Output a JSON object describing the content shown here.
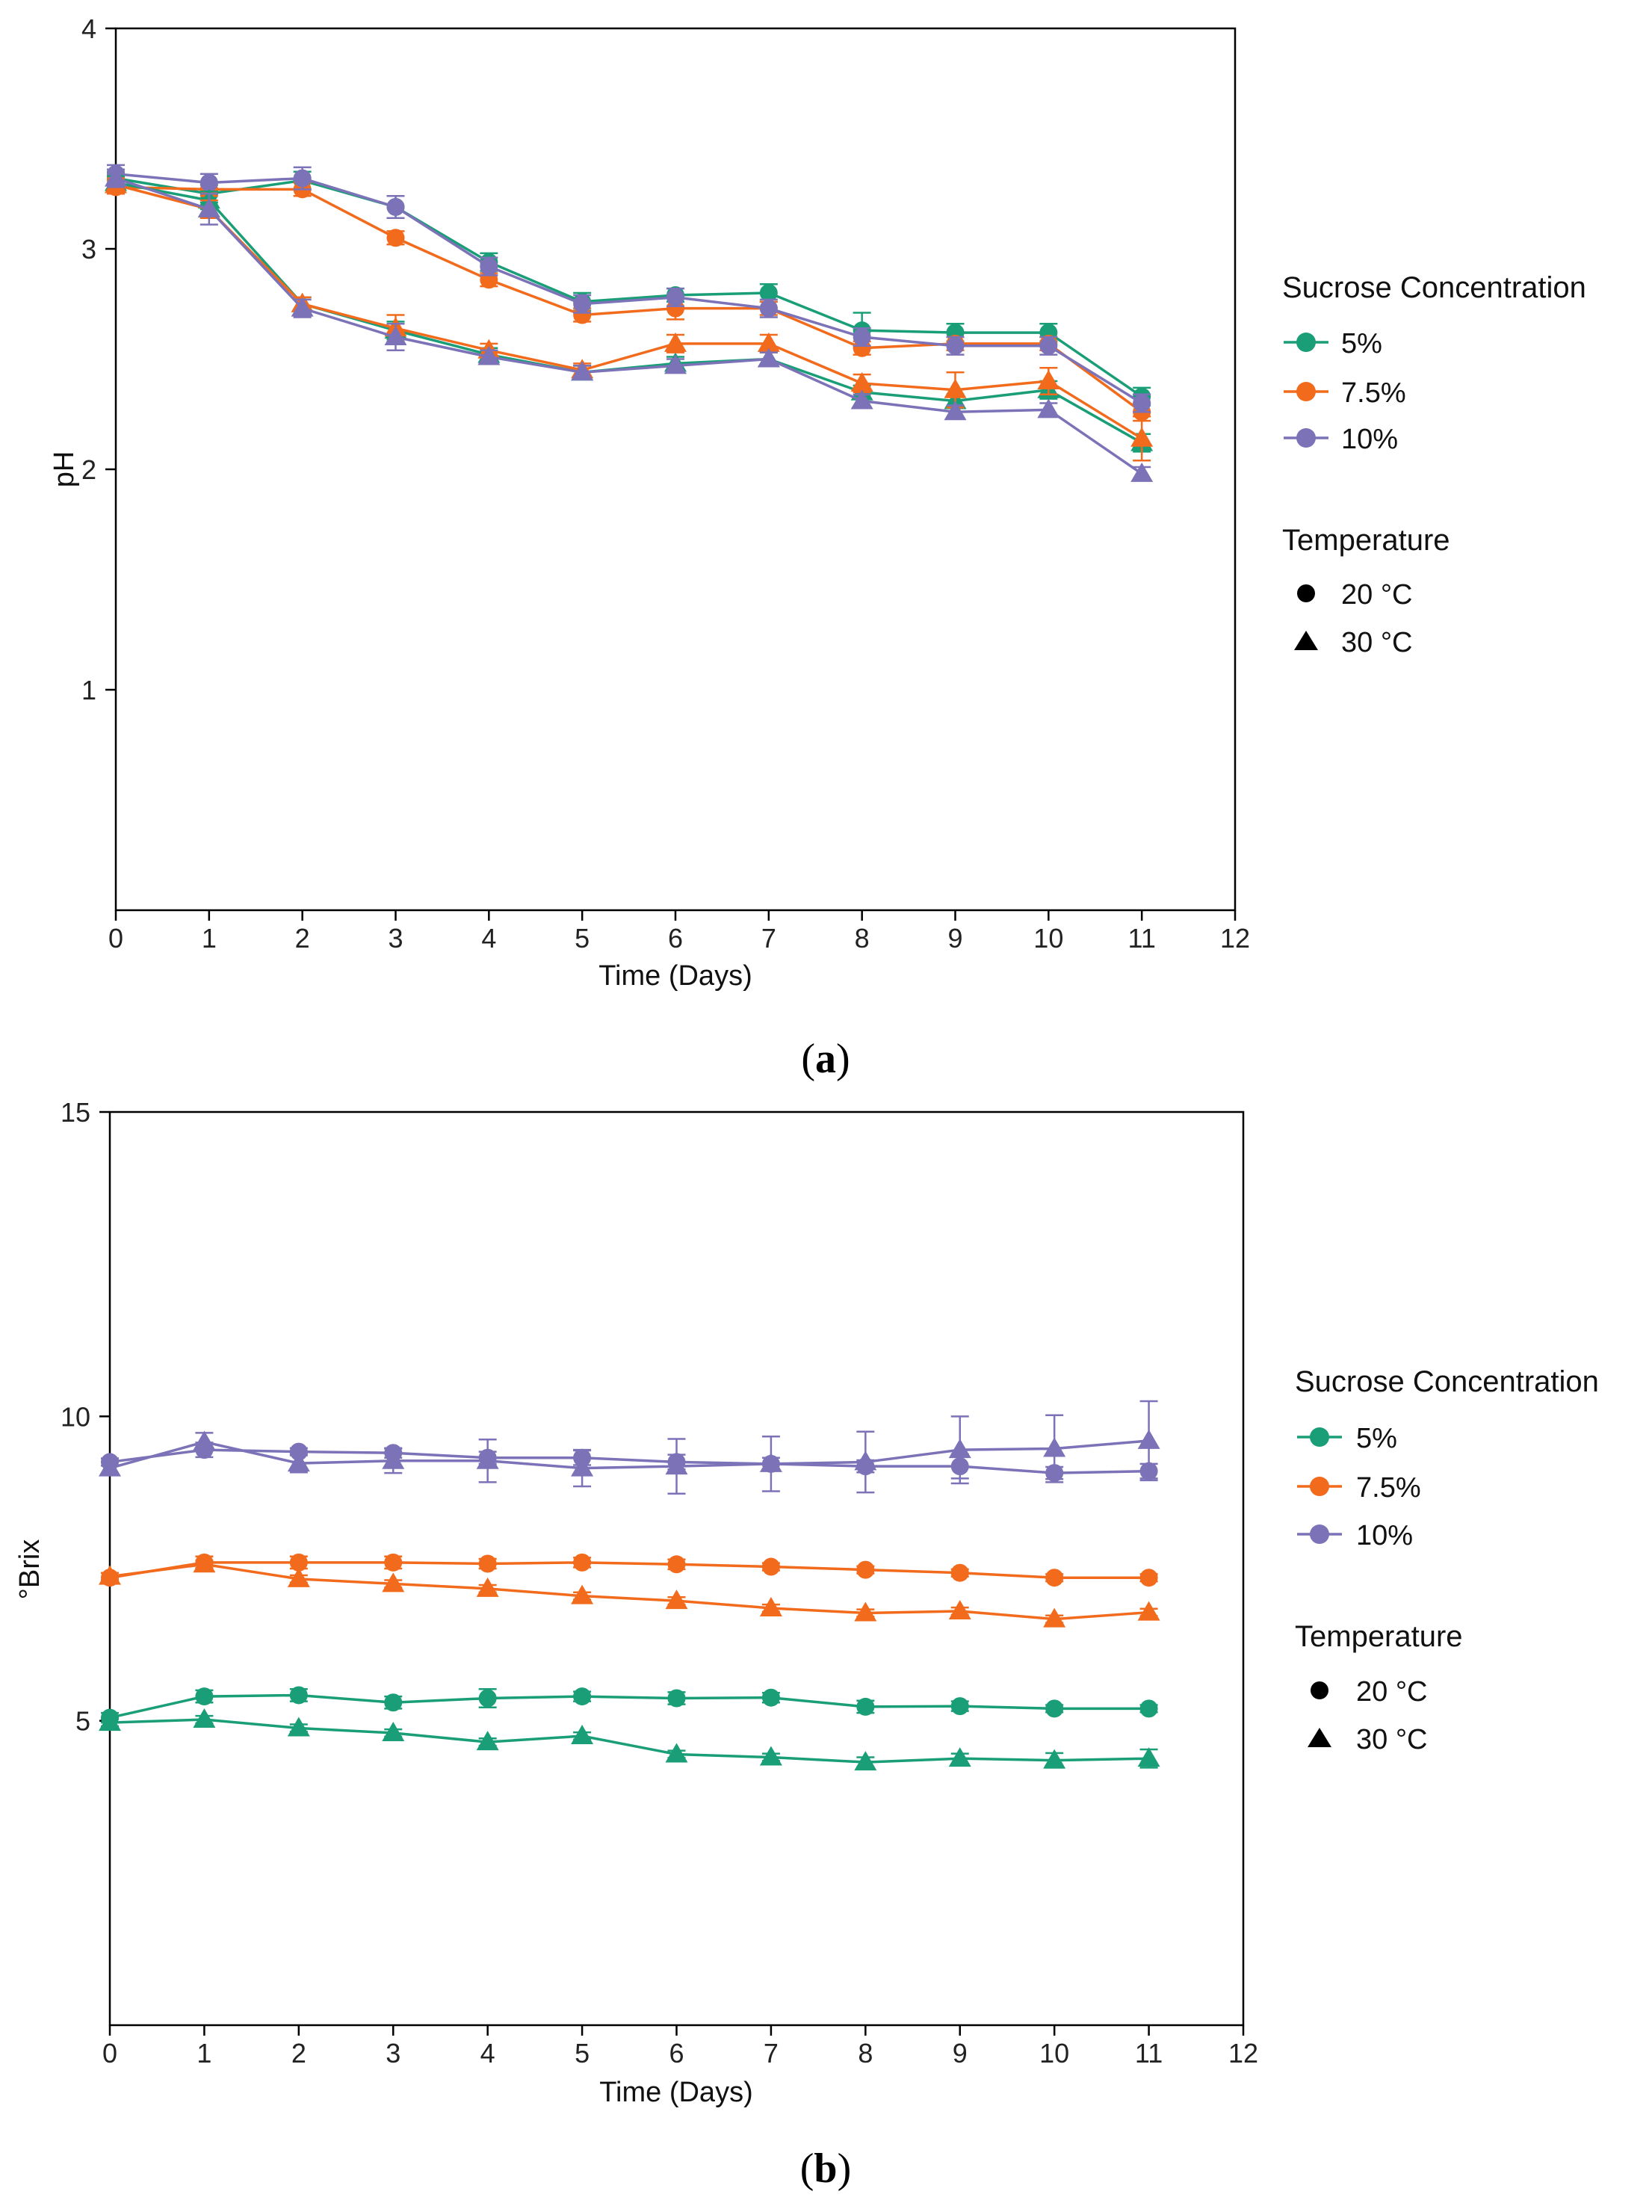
{
  "figure": {
    "colors": {
      "5%": "#1a9e77",
      "7.5%": "#f26b1d",
      "10%": "#7b72b8"
    },
    "legend": {
      "concentration_title": "Sucrose Concentration",
      "concentration_items": [
        "5%",
        "7.5%",
        "10%"
      ],
      "temperature_title": "Temperature",
      "temperature_items": [
        "20 °C",
        "30 °C"
      ]
    }
  },
  "chart_data": [
    {
      "type": "line",
      "id": "a",
      "caption_open": "(",
      "caption_letter": "a",
      "caption_close": ")",
      "xlabel": "Time (Days)",
      "ylabel": "pH",
      "xlim": [
        0,
        12
      ],
      "ylim": [
        0,
        4
      ],
      "xticks": [
        0,
        1,
        2,
        3,
        4,
        5,
        6,
        7,
        8,
        9,
        10,
        11,
        12
      ],
      "yticks": [
        1,
        2,
        3,
        4
      ],
      "x": [
        0,
        1,
        2,
        3,
        4,
        5,
        6,
        7,
        8,
        9,
        10,
        11
      ],
      "series": [
        {
          "name": "5% 20 °C",
          "concentration": "5%",
          "temperature": "20 °C",
          "marker": "circle",
          "values": [
            3.32,
            3.25,
            3.31,
            3.19,
            2.94,
            2.76,
            2.79,
            2.8,
            2.63,
            2.62,
            2.62,
            2.33
          ],
          "errors": [
            0.03,
            0.04,
            0.04,
            0.05,
            0.04,
            0.04,
            0.03,
            0.04,
            0.08,
            0.04,
            0.04,
            0.04
          ]
        },
        {
          "name": "7.5% 20 °C",
          "concentration": "7.5%",
          "temperature": "20 °C",
          "marker": "circle",
          "values": [
            3.28,
            3.27,
            3.27,
            3.05,
            2.86,
            2.7,
            2.73,
            2.73,
            2.55,
            2.57,
            2.57,
            2.26
          ],
          "errors": [
            0.03,
            0.03,
            0.03,
            0.03,
            0.03,
            0.03,
            0.05,
            0.03,
            0.03,
            0.03,
            0.03,
            0.04
          ]
        },
        {
          "name": "10% 20 °C",
          "concentration": "10%",
          "temperature": "20 °C",
          "marker": "circle",
          "values": [
            3.34,
            3.3,
            3.32,
            3.19,
            2.92,
            2.75,
            2.78,
            2.73,
            2.6,
            2.56,
            2.56,
            2.3
          ],
          "errors": [
            0.04,
            0.04,
            0.05,
            0.05,
            0.04,
            0.04,
            0.04,
            0.04,
            0.04,
            0.04,
            0.04,
            0.04
          ]
        },
        {
          "name": "5% 30 °C",
          "concentration": "5%",
          "temperature": "30 °C",
          "marker": "triangle",
          "values": [
            3.3,
            3.22,
            2.75,
            2.63,
            2.52,
            2.44,
            2.48,
            2.5,
            2.35,
            2.31,
            2.36,
            2.12
          ],
          "errors": [
            0.03,
            0.04,
            0.03,
            0.04,
            0.03,
            0.03,
            0.03,
            0.03,
            0.03,
            0.03,
            0.04,
            0.04
          ]
        },
        {
          "name": "7.5% 30 °C",
          "concentration": "7.5%",
          "temperature": "30 °C",
          "marker": "triangle",
          "values": [
            3.29,
            3.18,
            2.75,
            2.64,
            2.54,
            2.45,
            2.57,
            2.57,
            2.39,
            2.36,
            2.4,
            2.14
          ],
          "errors": [
            0.03,
            0.04,
            0.03,
            0.06,
            0.03,
            0.03,
            0.04,
            0.04,
            0.04,
            0.08,
            0.06,
            0.1
          ]
        },
        {
          "name": "10% 30 °C",
          "concentration": "10%",
          "temperature": "30 °C",
          "marker": "triangle",
          "values": [
            3.32,
            3.18,
            2.73,
            2.6,
            2.51,
            2.44,
            2.47,
            2.5,
            2.31,
            2.26,
            2.27,
            1.98
          ],
          "errors": [
            0.04,
            0.07,
            0.04,
            0.06,
            0.03,
            0.03,
            0.03,
            0.03,
            0.03,
            0.03,
            0.03,
            0.03
          ]
        }
      ]
    },
    {
      "type": "line",
      "id": "b",
      "caption_open": "(",
      "caption_letter": "b",
      "caption_close": ")",
      "xlabel": "Time (Days)",
      "ylabel": "°Brix",
      "xlim": [
        0,
        12
      ],
      "ylim": [
        0,
        15
      ],
      "xticks": [
        0,
        1,
        2,
        3,
        4,
        5,
        6,
        7,
        8,
        9,
        10,
        11,
        12
      ],
      "yticks": [
        5,
        10,
        15
      ],
      "x": [
        0,
        1,
        2,
        3,
        4,
        5,
        6,
        7,
        8,
        9,
        10,
        11
      ],
      "series": [
        {
          "name": "5% 20 °C",
          "concentration": "5%",
          "temperature": "20 °C",
          "marker": "circle",
          "values": [
            5.05,
            5.4,
            5.42,
            5.3,
            5.37,
            5.4,
            5.37,
            5.38,
            5.23,
            5.24,
            5.2,
            5.2
          ],
          "errors": [
            0.08,
            0.1,
            0.1,
            0.1,
            0.15,
            0.08,
            0.1,
            0.08,
            0.1,
            0.08,
            0.06,
            0.06
          ]
        },
        {
          "name": "7.5% 20 °C",
          "concentration": "7.5%",
          "temperature": "20 °C",
          "marker": "circle",
          "values": [
            7.35,
            7.6,
            7.6,
            7.6,
            7.58,
            7.6,
            7.57,
            7.53,
            7.48,
            7.43,
            7.35,
            7.35
          ],
          "errors": [
            0.08,
            0.1,
            0.1,
            0.1,
            0.08,
            0.08,
            0.08,
            0.06,
            0.06,
            0.06,
            0.06,
            0.06
          ]
        },
        {
          "name": "10% 20 °C",
          "concentration": "10%",
          "temperature": "20 °C",
          "marker": "circle",
          "values": [
            9.25,
            9.45,
            9.42,
            9.4,
            9.32,
            9.32,
            9.25,
            9.22,
            9.18,
            9.18,
            9.07,
            9.1
          ],
          "errors": [
            0.06,
            0.12,
            0.06,
            0.08,
            0.1,
            0.12,
            0.12,
            0.1,
            0.1,
            0.2,
            0.1,
            0.12
          ]
        },
        {
          "name": "5% 30 °C",
          "concentration": "5%",
          "temperature": "30 °C",
          "marker": "triangle",
          "values": [
            4.97,
            5.02,
            4.88,
            4.8,
            4.65,
            4.75,
            4.45,
            4.4,
            4.32,
            4.38,
            4.35,
            4.38
          ],
          "errors": [
            0.06,
            0.06,
            0.06,
            0.06,
            0.06,
            0.06,
            0.06,
            0.06,
            0.08,
            0.08,
            0.12,
            0.15
          ]
        },
        {
          "name": "7.5% 30 °C",
          "concentration": "7.5%",
          "temperature": "30 °C",
          "marker": "triangle",
          "values": [
            7.37,
            7.57,
            7.33,
            7.25,
            7.17,
            7.05,
            6.97,
            6.85,
            6.77,
            6.8,
            6.67,
            6.78
          ],
          "errors": [
            0.06,
            0.06,
            0.06,
            0.06,
            0.06,
            0.06,
            0.06,
            0.06,
            0.06,
            0.06,
            0.06,
            0.06
          ]
        },
        {
          "name": "10% 30 °C",
          "concentration": "10%",
          "temperature": "30 °C",
          "marker": "triangle",
          "values": [
            9.15,
            9.58,
            9.23,
            9.27,
            9.27,
            9.15,
            9.18,
            9.22,
            9.25,
            9.45,
            9.47,
            9.6
          ],
          "errors": [
            0.1,
            0.15,
            0.15,
            0.2,
            0.35,
            0.3,
            0.45,
            0.45,
            0.5,
            0.55,
            0.55,
            0.65
          ]
        }
      ]
    }
  ]
}
